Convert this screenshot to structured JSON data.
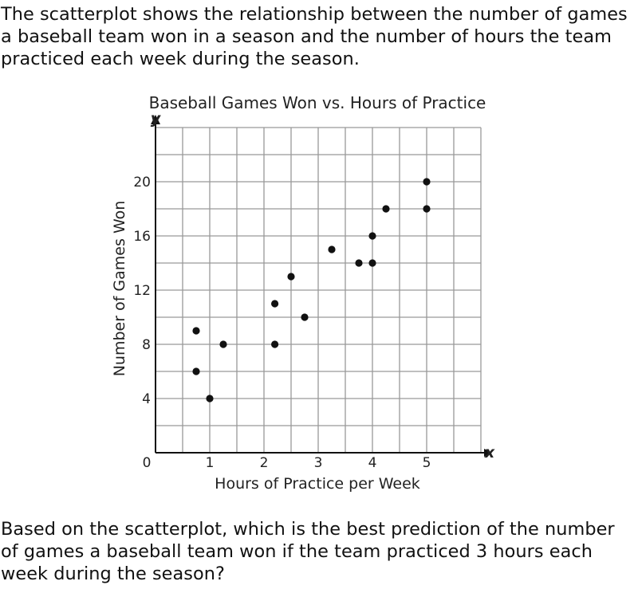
{
  "intro_text": "The scatterplot shows the relationship between the number of games a baseball team won in a season and the number of hours the team practiced each week during the season.",
  "question_text": "Based on the scatterplot, which is the best prediction of the number of games a baseball team won if the team practiced 3 hours each week during the season?",
  "chart_data": {
    "type": "scatter",
    "title": "Baseball Games Won vs. Hours of Practice",
    "xlabel": "Hours of Practice per Week",
    "ylabel": "Number of Games Won",
    "x_axis_letter": "x",
    "y_axis_letter": "y",
    "origin_label": "0",
    "xlim": [
      0,
      6
    ],
    "ylim": [
      0,
      24
    ],
    "x_grid_step": 0.5,
    "y_grid_step": 2,
    "x_ticks": [
      1,
      2,
      3,
      4,
      5
    ],
    "y_ticks": [
      4,
      8,
      12,
      16,
      20
    ],
    "grid": true,
    "points": [
      {
        "x": 0.75,
        "y": 9
      },
      {
        "x": 0.75,
        "y": 6
      },
      {
        "x": 1,
        "y": 4
      },
      {
        "x": 1.25,
        "y": 8
      },
      {
        "x": 2.2,
        "y": 11
      },
      {
        "x": 2.2,
        "y": 8
      },
      {
        "x": 2.5,
        "y": 13
      },
      {
        "x": 2.75,
        "y": 10
      },
      {
        "x": 3.25,
        "y": 15
      },
      {
        "x": 3.75,
        "y": 14
      },
      {
        "x": 4,
        "y": 14
      },
      {
        "x": 4,
        "y": 16
      },
      {
        "x": 4.25,
        "y": 18
      },
      {
        "x": 5,
        "y": 18
      },
      {
        "x": 5,
        "y": 20
      }
    ],
    "colors": {
      "grid": "#999999",
      "axis": "#111111",
      "point": "#111111"
    }
  }
}
